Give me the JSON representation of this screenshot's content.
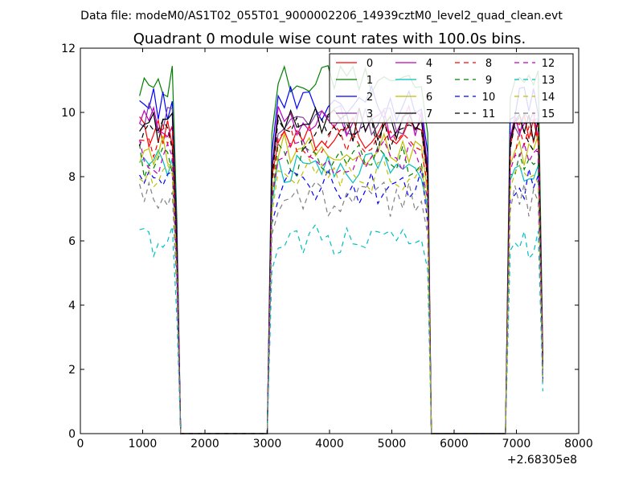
{
  "header": {
    "datafile": "Data file: modeM0/AS1T02_055T01_9000002206_14939cztM0_level2_quad_clean.evt"
  },
  "chart_data": {
    "type": "line",
    "title": "Quadrant 0 module wise count rates with 100.0s bins.",
    "xlabel": "",
    "ylabel": "",
    "xlim": [
      0,
      8000
    ],
    "ylim": [
      0,
      12
    ],
    "x_offset_label": "+2.68305e8",
    "xticks": [
      "0",
      "1000",
      "2000",
      "3000",
      "4000",
      "5000",
      "6000",
      "7000",
      "8000"
    ],
    "yticks": [
      "0",
      "2",
      "4",
      "6",
      "8",
      "10",
      "12"
    ],
    "legend_position": "top-right",
    "segments": [
      {
        "x_start": 950,
        "x_step": 75,
        "n": 9
      },
      {
        "x_start": 3075,
        "x_step": 100,
        "n": 26
      },
      {
        "x_start": 6900,
        "x_step": 75,
        "n": 8
      }
    ],
    "series": [
      {
        "name": "0",
        "color": "#ff0000",
        "style": "solid",
        "level": 9.4
      },
      {
        "name": "1",
        "color": "#008000",
        "style": "solid",
        "level": 11.0
      },
      {
        "name": "2",
        "color": "#0000ff",
        "style": "solid",
        "level": 10.3
      },
      {
        "name": "3",
        "color": "#7f3f9f",
        "style": "solid",
        "level": 9.8
      },
      {
        "name": "4",
        "color": "#bf00bf",
        "style": "solid",
        "level": 9.7
      },
      {
        "name": "5",
        "color": "#00bfbf",
        "style": "solid",
        "level": 8.3
      },
      {
        "name": "6",
        "color": "#bfbf00",
        "style": "solid",
        "level": 8.8
      },
      {
        "name": "7",
        "color": "#000000",
        "style": "solid",
        "level": 9.6
      },
      {
        "name": "8",
        "color": "#ff0000",
        "style": "dashed",
        "level": 9.1
      },
      {
        "name": "9",
        "color": "#008000",
        "style": "dashed",
        "level": 8.5
      },
      {
        "name": "10",
        "color": "#0000ff",
        "style": "dashed",
        "level": 7.7
      },
      {
        "name": "11",
        "color": "#000000",
        "style": "dashed",
        "level": 9.3
      },
      {
        "name": "12",
        "color": "#bf00bf",
        "style": "dashed",
        "level": 8.6
      },
      {
        "name": "13",
        "color": "#00bfbf",
        "style": "dashed",
        "level": 6.0
      },
      {
        "name": "14",
        "color": "#bfbf00",
        "style": "dashed",
        "level": 8.0
      },
      {
        "name": "15",
        "color": "#808080",
        "style": "dashed",
        "level": 7.3
      }
    ]
  }
}
